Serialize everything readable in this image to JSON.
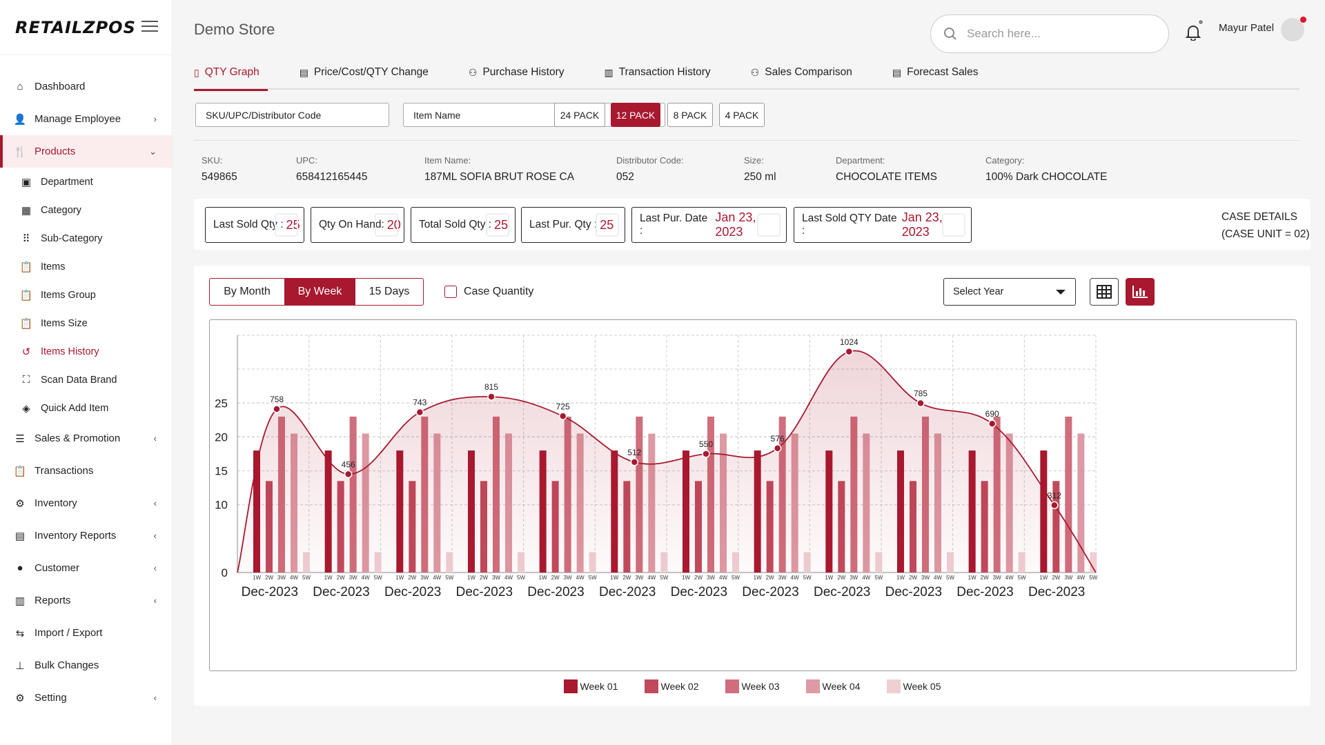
{
  "app": {
    "logo": "RETAILZPOS",
    "store_name": "Demo Store"
  },
  "header": {
    "search_placeholder": "Search here...",
    "user_name": "Mayur Patel"
  },
  "sidebar": {
    "items": [
      {
        "label": "Dashboard",
        "icon": "home-icon"
      },
      {
        "label": "Manage Employee",
        "icon": "user-icon",
        "chevron": "›"
      },
      {
        "label": "Products",
        "icon": "utensils-icon",
        "chevron": "⌄",
        "active": true
      },
      {
        "label": "Department",
        "icon": "image-icon",
        "sub": true
      },
      {
        "label": "Category",
        "icon": "grid-icon",
        "sub": true
      },
      {
        "label": "Sub-Category",
        "icon": "dots-grid-icon",
        "sub": true
      },
      {
        "label": "Items",
        "icon": "clipboard-icon",
        "sub": true
      },
      {
        "label": "Items Group",
        "icon": "clipboard-icon",
        "sub": true
      },
      {
        "label": "Items Size",
        "icon": "clipboard-icon",
        "sub": true
      },
      {
        "label": "Items History",
        "icon": "history-icon",
        "sub": true,
        "red": true
      },
      {
        "label": "Scan Data Brand",
        "icon": "scan-icon",
        "sub": true
      },
      {
        "label": "Quick Add Item",
        "icon": "layers-icon",
        "sub": true
      },
      {
        "label": "Sales & Promotion",
        "icon": "list-icon",
        "chevron": "‹"
      },
      {
        "label": "Transactions",
        "icon": "clipboard-icon"
      },
      {
        "label": "Inventory",
        "icon": "boxes-icon",
        "chevron": "‹"
      },
      {
        "label": "Inventory Reports",
        "icon": "report-icon",
        "chevron": "‹"
      },
      {
        "label": "Customer",
        "icon": "person-icon",
        "chevron": "‹"
      },
      {
        "label": "Reports",
        "icon": "chart-doc-icon",
        "chevron": "‹"
      },
      {
        "label": "Import / Export",
        "icon": "arrows-icon"
      },
      {
        "label": "Bulk Changes",
        "icon": "sitemap-icon"
      },
      {
        "label": "Setting",
        "icon": "gear-icon",
        "chevron": "‹"
      }
    ]
  },
  "tabs": [
    {
      "label": "QTY Graph",
      "active": true
    },
    {
      "label": "Price/Cost/QTY Change"
    },
    {
      "label": "Purchase History"
    },
    {
      "label": "Transaction History"
    },
    {
      "label": "Sales Comparison"
    },
    {
      "label": "Forecast Sales"
    }
  ],
  "filters": {
    "sku_placeholder": "SKU/UPC/Distributor Code",
    "name_placeholder": "Item Name",
    "packs": [
      "24 PACK",
      "12 PACK",
      "8 PACK",
      "4 PACK"
    ],
    "active_pack": "12 PACK"
  },
  "item_info": [
    {
      "label": "SKU:",
      "value": "549865"
    },
    {
      "label": "UPC:",
      "value": "658412165445"
    },
    {
      "label": "Item Name:",
      "value": "187ML  SOFIA BRUT ROSE CA"
    },
    {
      "label": "Distributor Code:",
      "value": "052"
    },
    {
      "label": "Size:",
      "value": "250 ml"
    },
    {
      "label": "Department:",
      "value": "CHOCOLATE ITEMS"
    },
    {
      "label": "Category:",
      "value": "100% Dark CHOCOLATE"
    }
  ],
  "stats": [
    {
      "label": "Last Sold Qty :",
      "value": "25"
    },
    {
      "label": "Qty On Hand:",
      "value": "20"
    },
    {
      "label": "Total Sold Qty :",
      "value": "25"
    },
    {
      "label": "Last Pur. Qty :",
      "value": "25"
    },
    {
      "label": "Last Pur. Date :",
      "value": "Jan 23, 2023"
    },
    {
      "label": "Last Sold QTY Date :",
      "value": "Jan 23, 2023"
    }
  ],
  "case_details": {
    "line1": "CASE DETAILS",
    "line2": "(CASE UNIT = 02)"
  },
  "chart_controls": {
    "periods": [
      "By Month",
      "By Week",
      "15 Days"
    ],
    "active_period": "By Week",
    "case_quantity_label": "Case Quantity",
    "select_year_label": "Select Year"
  },
  "colors": {
    "accent": "#a8182e",
    "week_colors": [
      "#a8182e",
      "#c04a5c",
      "#cf6e7c",
      "#dd9aa4",
      "#efcfd4"
    ]
  },
  "chart_data": {
    "type": "bar",
    "categories": [
      "Dec-2023",
      "Dec-2023",
      "Dec-2023",
      "Dec-2023",
      "Dec-2023",
      "Dec-2023",
      "Dec-2023",
      "Dec-2023",
      "Dec-2023",
      "Dec-2023",
      "Dec-2023",
      "Dec-2023"
    ],
    "week_tick_labels": [
      "1W",
      "2W",
      "3W",
      "4W",
      "5W"
    ],
    "series": [
      {
        "name": "Week 01",
        "values": [
          18,
          18,
          18,
          18,
          18,
          18,
          18,
          18,
          18,
          18,
          18,
          18
        ]
      },
      {
        "name": "Week 02",
        "values": [
          13.5,
          13.5,
          13.5,
          13.5,
          13.5,
          13.5,
          13.5,
          13.5,
          13.5,
          13.5,
          13.5,
          13.5
        ]
      },
      {
        "name": "Week 03",
        "values": [
          23,
          23,
          23,
          23,
          23,
          23,
          23,
          23,
          23,
          23,
          23,
          23
        ]
      },
      {
        "name": "Week 04",
        "values": [
          20.5,
          20.5,
          20.5,
          20.5,
          20.5,
          20.5,
          20.5,
          20.5,
          20.5,
          20.5,
          20.5,
          20.5
        ]
      },
      {
        "name": "Week 05",
        "values": [
          3,
          3,
          3,
          3,
          3,
          3,
          3,
          3,
          3,
          3,
          3,
          3
        ]
      }
    ],
    "y_ticks": [
      0,
      10,
      15,
      20,
      25
    ],
    "ylim": [
      0,
      35
    ],
    "overlay_line": {
      "type": "area",
      "values": [
        758,
        456,
        743,
        815,
        725,
        512,
        550,
        576,
        1024,
        785,
        690,
        312
      ],
      "labels": [
        "758",
        "456",
        "743",
        "815",
        "725",
        "512",
        "550",
        "576",
        "1024",
        "785",
        "690",
        "312"
      ],
      "ylim": [
        0,
        1100
      ]
    },
    "legend_position": "bottom",
    "grid": true
  }
}
